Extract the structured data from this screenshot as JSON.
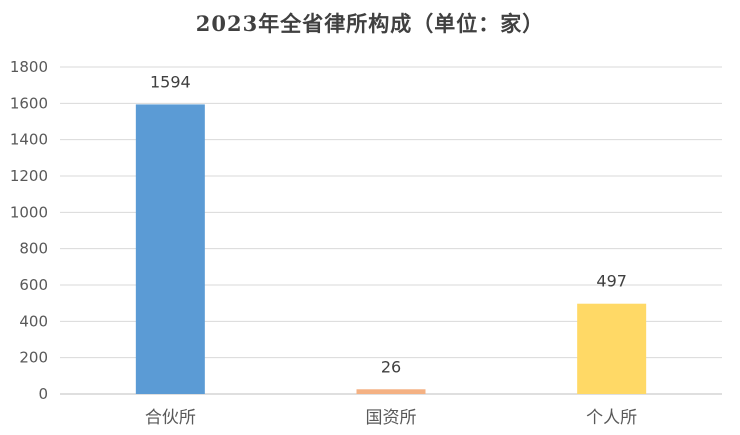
{
  "chart_data": {
    "type": "bar",
    "title": "2023年全省律所构成（单位：家）",
    "categories": [
      "合伙所",
      "国资所",
      "个人所"
    ],
    "values": [
      1594,
      26,
      497
    ],
    "bar_colors": [
      "#5b9bd5",
      "#f4b183",
      "#ffd966"
    ],
    "ylim": [
      0,
      1800
    ],
    "yticks": [
      0,
      200,
      400,
      600,
      800,
      1000,
      1200,
      1400,
      1600,
      1800
    ],
    "xlabel": "",
    "ylabel": "",
    "grid": true,
    "legend": "none"
  }
}
